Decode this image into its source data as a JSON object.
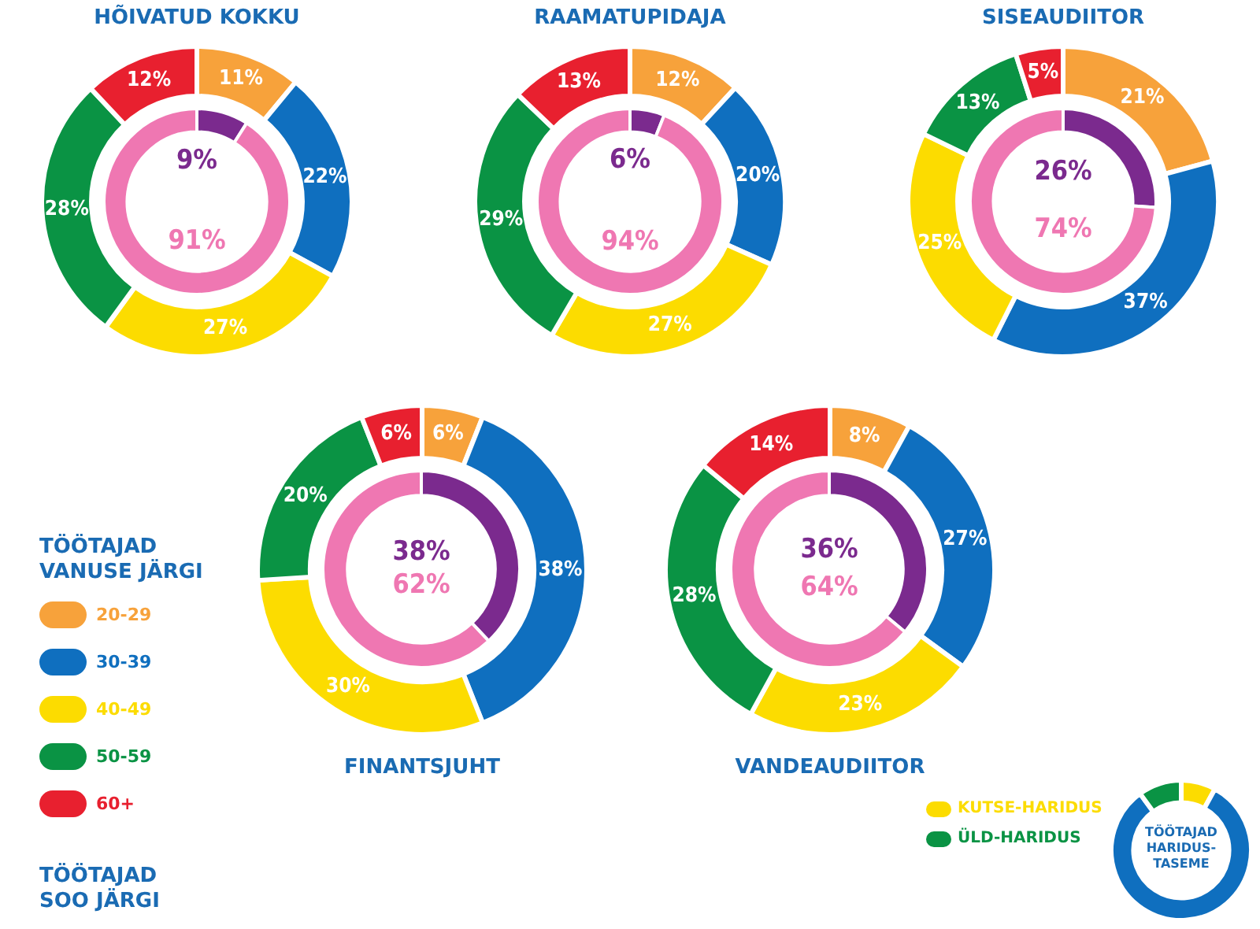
{
  "chart_data": [
    {
      "type": "donut",
      "title": "HÕIVATUD KOKKU",
      "values": [
        11,
        22,
        27,
        28,
        12
      ],
      "colors": [
        "#f7a23b",
        "#0f6fbf",
        "#fcdc00",
        "#0a9344",
        "#e8202f"
      ],
      "value_labels": [
        "11%",
        "22%",
        "27%",
        "28%",
        "12%"
      ]
    },
    {
      "type": "donut",
      "values": [
        9,
        91
      ],
      "colors": [
        "#7b2a8e",
        "#ef77b2"
      ],
      "value_labels": [
        "9%",
        "91%"
      ]
    },
    {
      "type": "donut",
      "title": "RAAMATUPIDAJA",
      "values": [
        12,
        20,
        27,
        29,
        13
      ],
      "colors": [
        "#f7a23b",
        "#0f6fbf",
        "#fcdc00",
        "#0a9344",
        "#e8202f"
      ],
      "value_labels": [
        "12%",
        "20%",
        "27%",
        "29%",
        "13%"
      ]
    },
    {
      "type": "donut",
      "values": [
        6,
        94
      ],
      "colors": [
        "#7b2a8e",
        "#ef77b2"
      ],
      "value_labels": [
        "6%",
        "94%"
      ]
    },
    {
      "type": "donut",
      "title": "SISEAUDIITOR",
      "values": [
        21,
        37,
        25,
        13,
        5
      ],
      "colors": [
        "#f7a23b",
        "#0f6fbf",
        "#fcdc00",
        "#0a9344",
        "#e8202f"
      ],
      "value_labels": [
        "21%",
        "37%",
        "25%",
        "13%",
        "5%"
      ]
    },
    {
      "type": "donut",
      "values": [
        26,
        74
      ],
      "colors": [
        "#7b2a8e",
        "#ef77b2"
      ],
      "value_labels": [
        "26%",
        "74%"
      ]
    },
    {
      "type": "donut",
      "title": "FINANTSJUHT",
      "legend": "left",
      "legend_title": "TÖÖTAJAD VANUSE JÄRGI",
      "annotations": [
        "TÖÖTAJAD SOO JÄRGI"
      ],
      "categories": [
        "20-29",
        "30-39",
        "40-49",
        "50-59",
        "60+"
      ],
      "values": [
        6,
        38,
        30,
        20,
        6
      ],
      "colors": [
        "#f7a23b",
        "#0f6fbf",
        "#fcdc00",
        "#0a9344",
        "#e8202f"
      ],
      "value_labels": [
        "6%",
        "38%",
        "30%",
        "20%",
        "6%"
      ]
    },
    {
      "type": "donut",
      "values": [
        38,
        62
      ],
      "colors": [
        "#7b2a8e",
        "#ef77b2"
      ],
      "value_labels": [
        "38%",
        "62%"
      ]
    },
    {
      "type": "donut",
      "title": "VANDEAUDIITOR",
      "values": [
        8,
        27,
        23,
        28,
        14
      ],
      "colors": [
        "#f7a23b",
        "#0f6fbf",
        "#fcdc00",
        "#0a9344",
        "#e8202f"
      ],
      "value_labels": [
        "8%",
        "27%",
        "23%",
        "28%",
        "14%"
      ]
    },
    {
      "type": "donut",
      "values": [
        36,
        64
      ],
      "colors": [
        "#7b2a8e",
        "#ef77b2"
      ],
      "value_labels": [
        "36%",
        "64%"
      ]
    },
    {
      "type": "donut",
      "title": "TÖÖTAJAD HARIDUS-TASEME",
      "legend": "left",
      "categories": [
        "KUTSE-HARIDUS",
        null,
        "ÜLD-HARIDUS"
      ],
      "values": [
        8,
        82,
        10
      ],
      "colors": [
        "#fcdc00",
        "#0f6fbf",
        "#0a9344"
      ]
    }
  ]
}
